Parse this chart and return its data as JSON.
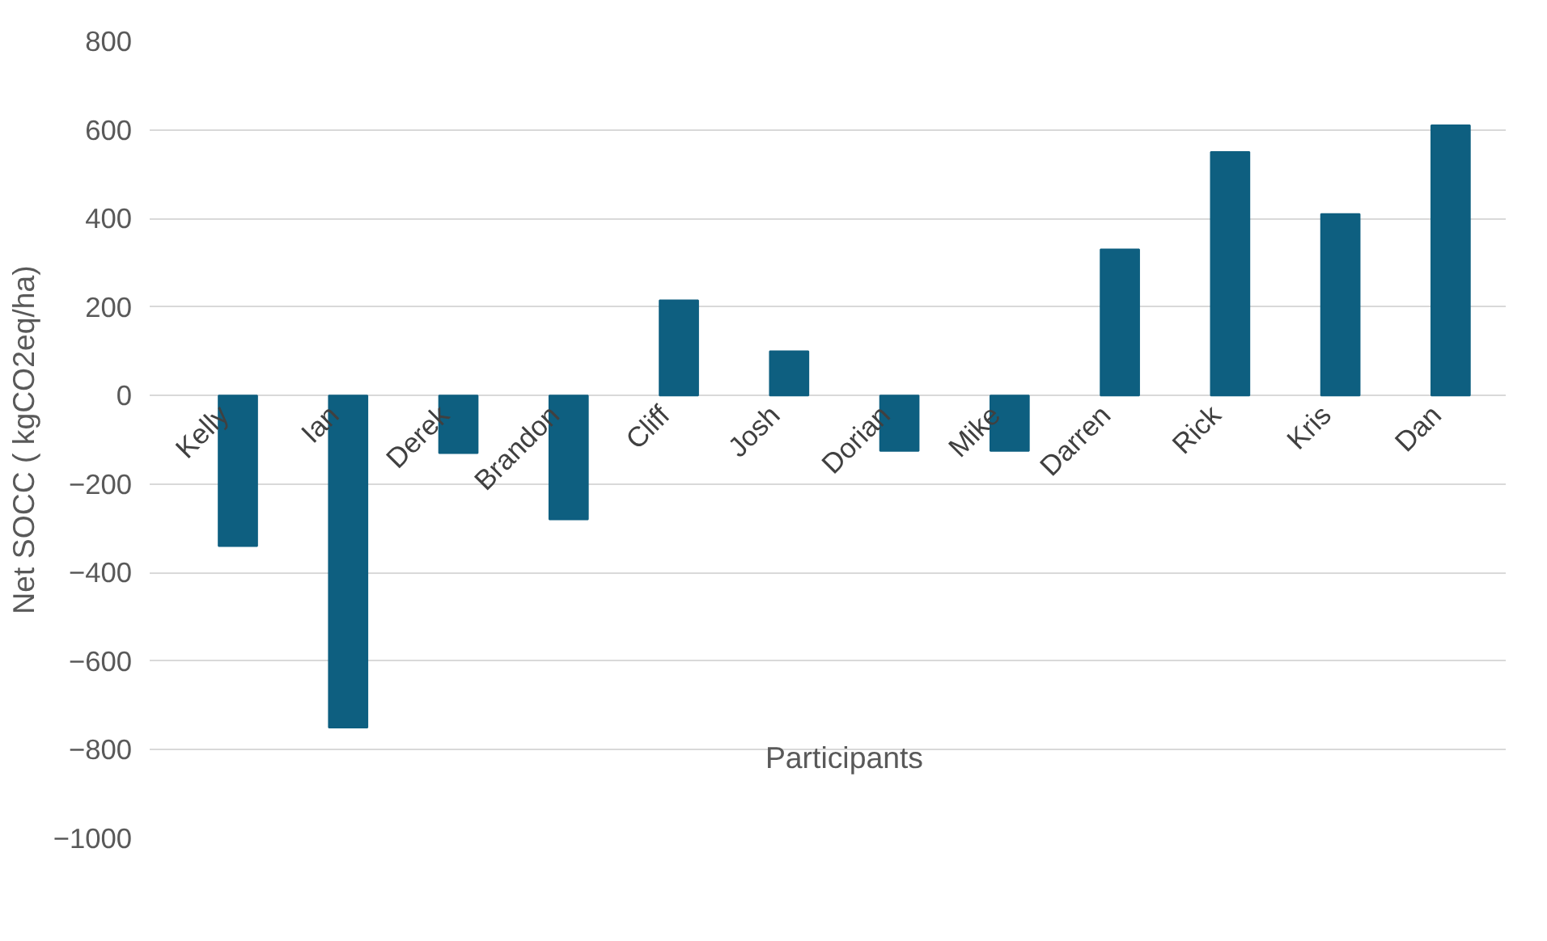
{
  "chart_data": {
    "type": "bar",
    "ylabel": "Net SOCC ( kgCO2eq/ha)",
    "xlabel": "Participants",
    "categories": [
      "Kelly",
      "Ian",
      "Derek",
      "Brandon",
      "Cliff",
      "Josh",
      "Dorian",
      "Mike",
      "Darren",
      "Rick",
      "Kris",
      "Dan"
    ],
    "values": [
      -340,
      -750,
      -130,
      -280,
      215,
      100,
      -125,
      -125,
      330,
      550,
      410,
      610
    ],
    "color": "#0e5f80",
    "ylim": [
      -1000,
      800
    ],
    "yticks": [
      -1000,
      -800,
      -600,
      -400,
      -200,
      0,
      200,
      400,
      600,
      800
    ],
    "grid": "y"
  }
}
